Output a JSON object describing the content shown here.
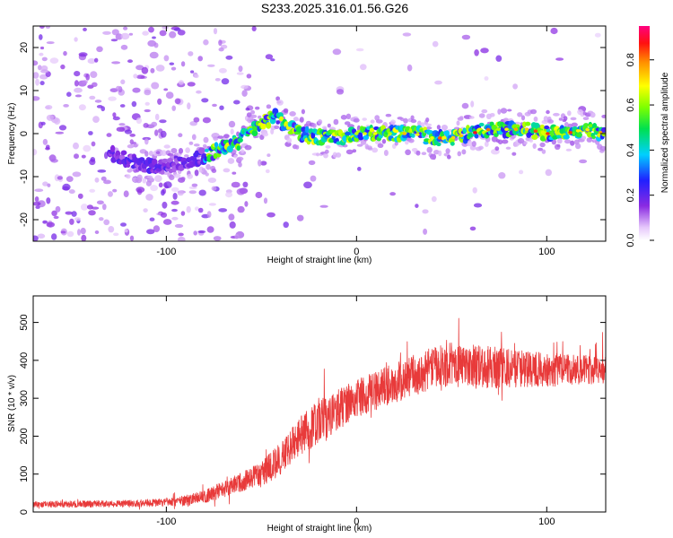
{
  "title": "S233.2025.316.01.56.G26",
  "chart_data": [
    {
      "type": "heatmap",
      "xlabel": "Height of straight line (km)",
      "ylabel": "Frequency (Hz)",
      "xlim": [
        -170,
        131
      ],
      "ylim": [
        -25,
        25
      ],
      "xticks": [
        -100,
        0,
        100
      ],
      "xtick_labels": [
        "-100",
        "0",
        "100"
      ],
      "yticks": [
        -20,
        -10,
        0,
        10,
        20
      ],
      "ytick_labels": [
        "-20",
        "-10",
        "0",
        "10",
        "20"
      ],
      "ridge_center": [
        [
          -165,
          -3
        ],
        [
          -150,
          -4
        ],
        [
          -135,
          -4
        ],
        [
          -125,
          -5
        ],
        [
          -115,
          -7
        ],
        [
          -105,
          -8
        ],
        [
          -95,
          -7
        ],
        [
          -85,
          -6
        ],
        [
          -78,
          -5
        ],
        [
          -70,
          -3
        ],
        [
          -62,
          -2
        ],
        [
          -55,
          1
        ],
        [
          -48,
          3
        ],
        [
          -42,
          4
        ],
        [
          -38,
          2
        ],
        [
          -30,
          0
        ],
        [
          -20,
          -1
        ],
        [
          -10,
          -1
        ],
        [
          0,
          0
        ],
        [
          10,
          0
        ],
        [
          20,
          0
        ],
        [
          30,
          0
        ],
        [
          40,
          -1
        ],
        [
          50,
          -1
        ],
        [
          60,
          0
        ],
        [
          70,
          1
        ],
        [
          80,
          1
        ],
        [
          90,
          1
        ],
        [
          100,
          0
        ],
        [
          110,
          0
        ],
        [
          120,
          1
        ],
        [
          131,
          0
        ]
      ],
      "colorbar": {
        "label": "Normalized spectral amplitude",
        "range": [
          0,
          0.95
        ],
        "ticks": [
          0.0,
          0.2,
          0.4,
          0.6,
          0.8
        ],
        "tick_labels": [
          "0.0",
          "0.2",
          "0.4",
          "0.6",
          "0.8"
        ]
      }
    },
    {
      "type": "line",
      "xlabel": "Height of straight line (km)",
      "ylabel": "SNR (10 * v/v)",
      "xlim": [
        -170,
        131
      ],
      "ylim": [
        0,
        570
      ],
      "xticks": [
        -100,
        0,
        100
      ],
      "xtick_labels": [
        "-100",
        "0",
        "100"
      ],
      "yticks": [
        0,
        100,
        200,
        300,
        400,
        500
      ],
      "ytick_labels": [
        "0",
        "100",
        "200",
        "300",
        "400",
        "500"
      ],
      "color": "#e83a3a",
      "trend": {
        "x": [
          -170,
          -120,
          -100,
          -90,
          -80,
          -70,
          -60,
          -50,
          -40,
          -30,
          -20,
          -10,
          0,
          10,
          20,
          30,
          40,
          50,
          60,
          70,
          80,
          90,
          100,
          110,
          120,
          131
        ],
        "y": [
          20,
          22,
          25,
          30,
          40,
          60,
          80,
          100,
          140,
          200,
          240,
          270,
          300,
          320,
          340,
          360,
          380,
          390,
          385,
          380,
          380,
          378,
          375,
          375,
          375,
          375
        ]
      },
      "noise_amplitude": {
        "x": [
          -170,
          -100,
          -60,
          -20,
          0,
          40,
          60,
          100,
          131
        ],
        "y": [
          8,
          10,
          25,
          60,
          50,
          55,
          60,
          45,
          35
        ]
      }
    }
  ]
}
